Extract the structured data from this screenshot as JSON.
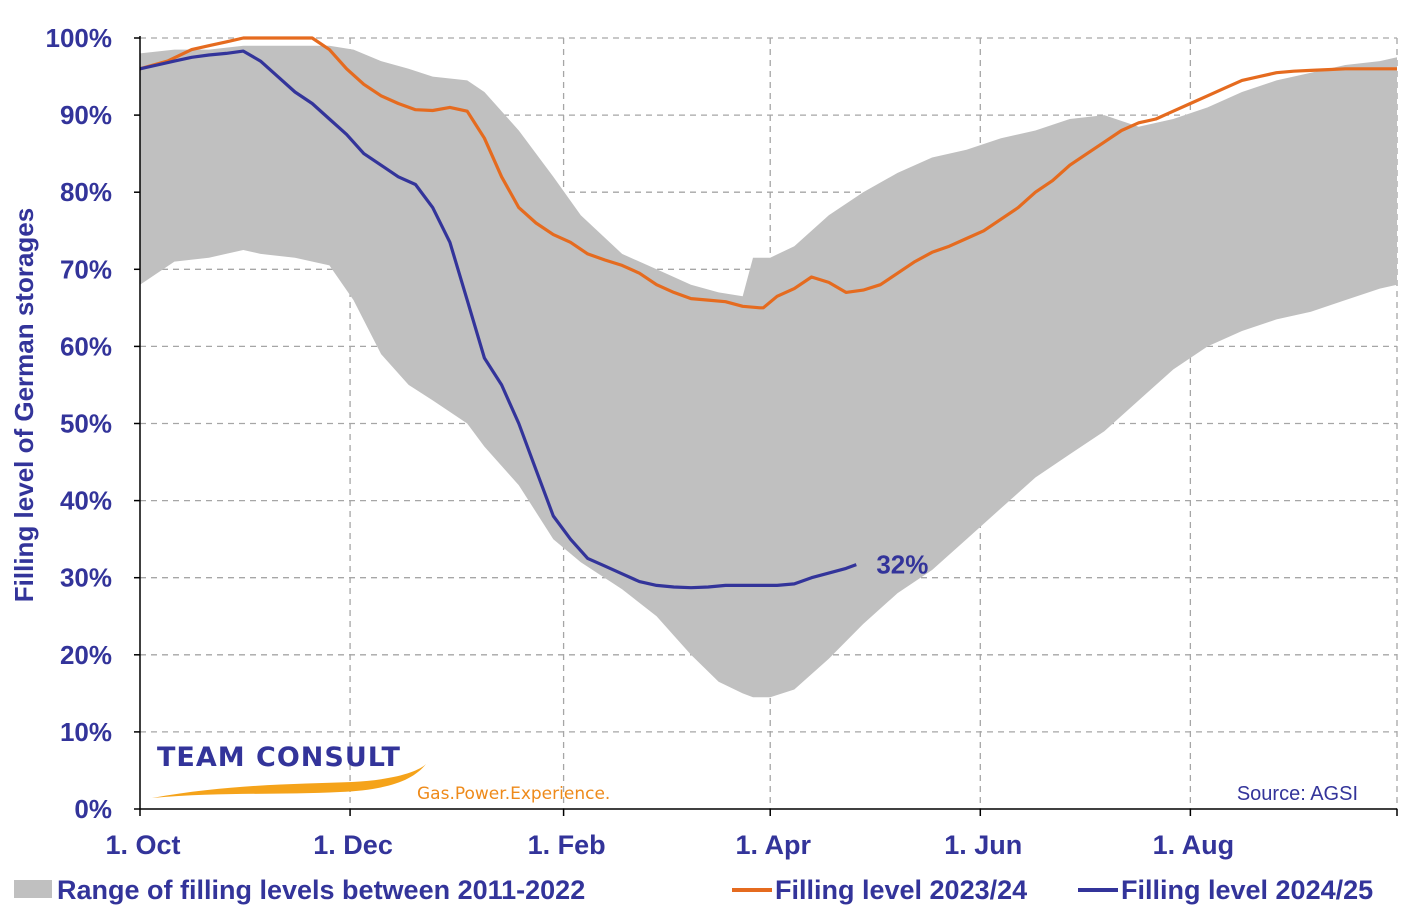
{
  "chart_data": {
    "type": "line",
    "title": "",
    "ylabel": "Filling level of German storages",
    "xlabel": "",
    "ylim": [
      0,
      100
    ],
    "xlim": [
      0,
      365
    ],
    "y_ticks": [
      0,
      10,
      20,
      30,
      40,
      50,
      60,
      70,
      80,
      90,
      100
    ],
    "y_tick_labels": [
      "0%",
      "10%",
      "20%",
      "30%",
      "40%",
      "50%",
      "60%",
      "70%",
      "80%",
      "90%",
      "100%"
    ],
    "x_ticks": [
      {
        "label": "1. Oct",
        "day": 0
      },
      {
        "label": "1. Dec",
        "day": 61
      },
      {
        "label": "1. Feb",
        "day": 123
      },
      {
        "label": "1. Apr",
        "day": 183
      },
      {
        "label": "1. Jun",
        "day": 244
      },
      {
        "label": "1. Aug",
        "day": 305
      }
    ],
    "grid": true,
    "legend_position": "bottom",
    "colors": {
      "range": "#c0c0c0",
      "series_2023": "#e56b1f",
      "series_2024": "#33349a",
      "axis_text": "#33349a",
      "grid": "#a6a6a6"
    },
    "range_band": {
      "name": "Range of filling levels between 2011-2022",
      "x": [
        0,
        10,
        20,
        30,
        35,
        45,
        55,
        62,
        70,
        78,
        85,
        95,
        100,
        110,
        120,
        128,
        140,
        150,
        160,
        168,
        175,
        178,
        183,
        190,
        200,
        210,
        220,
        230,
        240,
        250,
        260,
        270,
        280,
        290,
        300,
        310,
        320,
        330,
        340,
        350,
        360,
        365
      ],
      "upper": [
        98,
        98.5,
        98.5,
        99,
        99,
        99,
        99,
        98.5,
        97,
        96,
        95,
        94.5,
        93,
        88,
        82,
        77,
        72,
        70,
        68,
        67,
        66.5,
        71.5,
        71.5,
        73,
        77,
        80,
        82.5,
        84.5,
        85.5,
        87,
        88,
        89.5,
        90,
        88.5,
        89.5,
        91,
        93,
        94.5,
        95.5,
        96.5,
        97,
        97.5
      ],
      "lower": [
        68,
        71,
        71.5,
        72.5,
        72,
        71.5,
        70.5,
        66,
        59,
        55,
        53,
        50,
        47,
        42,
        35,
        32,
        28.5,
        25,
        20,
        16.5,
        15,
        14.5,
        14.5,
        15.5,
        19.5,
        24,
        28,
        31,
        35,
        39,
        43,
        46,
        49,
        53,
        57,
        60,
        62,
        63.5,
        64.5,
        66,
        67.5,
        68
      ]
    },
    "series": [
      {
        "name": "Filling level 2023/24",
        "x": [
          0,
          8,
          15,
          20,
          25,
          30,
          35,
          40,
          45,
          50,
          55,
          60,
          65,
          70,
          75,
          80,
          85,
          90,
          95,
          100,
          105,
          110,
          115,
          120,
          125,
          130,
          135,
          140,
          145,
          150,
          155,
          160,
          165,
          170,
          175,
          180,
          181,
          185,
          190,
          195,
          200,
          205,
          210,
          215,
          220,
          225,
          230,
          235,
          240,
          245,
          250,
          255,
          260,
          265,
          270,
          275,
          280,
          285,
          290,
          295,
          300,
          305,
          310,
          315,
          320,
          325,
          330,
          335,
          340,
          345,
          350,
          355,
          360,
          365
        ],
        "values": [
          96,
          97,
          98.5,
          99,
          99.5,
          100,
          100,
          100,
          100,
          100,
          98.5,
          96,
          94,
          92.5,
          91.5,
          90.7,
          90.6,
          91,
          90.5,
          87,
          82,
          78,
          76,
          74.5,
          73.5,
          72,
          71.2,
          70.5,
          69.5,
          68,
          67,
          66.2,
          66,
          65.8,
          65.2,
          65,
          65,
          66.5,
          67.5,
          69,
          68.3,
          67,
          67.3,
          68,
          69.5,
          71,
          72.2,
          73,
          74,
          75,
          76.5,
          78,
          80,
          81.5,
          83.5,
          85,
          86.5,
          88,
          89,
          89.5,
          90.5,
          91.5,
          92.5,
          93.5,
          94.5,
          95,
          95.5,
          95.7,
          95.8,
          95.9,
          96,
          96,
          96,
          96
        ]
      },
      {
        "name": "Filling level 2024/25",
        "x": [
          0,
          5,
          10,
          15,
          20,
          25,
          30,
          35,
          40,
          45,
          50,
          55,
          60,
          65,
          70,
          75,
          80,
          85,
          90,
          95,
          100,
          105,
          110,
          115,
          120,
          125,
          130,
          135,
          140,
          145,
          150,
          155,
          160,
          165,
          170,
          175,
          180,
          185,
          190,
          195,
          200,
          205,
          208
        ],
        "values": [
          96,
          96.5,
          97,
          97.5,
          97.8,
          98,
          98.3,
          97,
          95,
          93,
          91.5,
          89.5,
          87.5,
          85,
          83.5,
          82,
          81,
          78,
          73.5,
          66,
          58.5,
          55,
          50,
          44,
          38,
          35,
          32.5,
          31.5,
          30.5,
          29.5,
          29,
          28.8,
          28.7,
          28.8,
          29,
          29,
          29,
          29,
          29.2,
          30,
          30.6,
          31.2,
          31.7
        ]
      }
    ],
    "annotation": {
      "text": "32%",
      "x": 208,
      "y": 31.7
    },
    "source": "Source:  AGSI",
    "logo": {
      "name": "TEAM CONSULT",
      "tagline": "Gas.Power.Experience."
    }
  }
}
